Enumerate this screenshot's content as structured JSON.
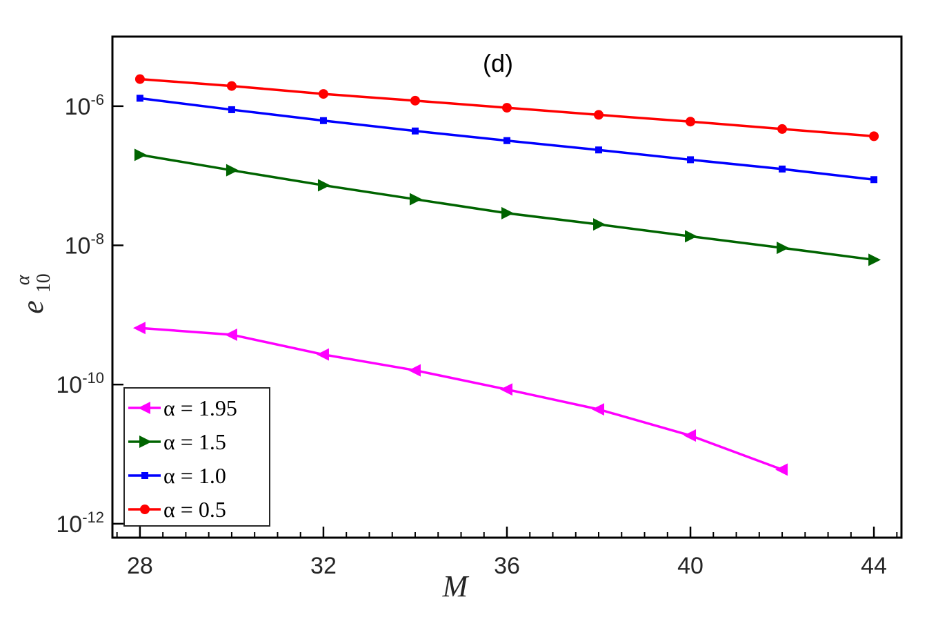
{
  "chart_data": {
    "type": "line",
    "panel_label": "(d)",
    "xlabel": "M",
    "ylabel_base": "e",
    "ylabel_sup": "α",
    "ylabel_sub": "10",
    "yscale": "log",
    "xlim": [
      27.4,
      44.6
    ],
    "ylim_exp": [
      -12.2,
      -5.0
    ],
    "xticks": [
      {
        "value": 28,
        "label": "28"
      },
      {
        "value": 32,
        "label": "32"
      },
      {
        "value": 36,
        "label": "36"
      },
      {
        "value": 40,
        "label": "40"
      },
      {
        "value": 44,
        "label": "44"
      }
    ],
    "yticks": [
      {
        "exp": -6,
        "base": "10",
        "sup": "-6"
      },
      {
        "exp": -8,
        "base": "10",
        "sup": "-8"
      },
      {
        "exp": -10,
        "base": "10",
        "sup": "-10"
      },
      {
        "exp": -12,
        "base": "10",
        "sup": "-12"
      }
    ],
    "legend_position": "bottom-left",
    "series": [
      {
        "name": "α = 1.95",
        "color": "#ff00ff",
        "marker": "triangle-left",
        "x": [
          28,
          30,
          32,
          34,
          36,
          38,
          40,
          42
        ],
        "y": [
          6.5e-10,
          5.2e-10,
          2.7e-10,
          1.6e-10,
          8.5e-11,
          4.4e-11,
          1.85e-11,
          6e-12
        ]
      },
      {
        "name": "α = 1.5",
        "color": "#006400",
        "marker": "triangle-right",
        "x": [
          28,
          30,
          32,
          34,
          36,
          38,
          40,
          42,
          44
        ],
        "y": [
          2e-07,
          1.2e-07,
          7.3e-08,
          4.6e-08,
          2.9e-08,
          2e-08,
          1.35e-08,
          9.2e-09,
          6.2e-09
        ]
      },
      {
        "name": "α = 1.0",
        "color": "#0000ff",
        "marker": "square",
        "x": [
          28,
          30,
          32,
          34,
          36,
          38,
          40,
          42,
          44
        ],
        "y": [
          1.3e-06,
          8.9e-07,
          6.2e-07,
          4.4e-07,
          3.2e-07,
          2.35e-07,
          1.7e-07,
          1.25e-07,
          8.8e-08
        ]
      },
      {
        "name": "α = 0.5",
        "color": "#ff0000",
        "marker": "circle",
        "x": [
          28,
          30,
          32,
          34,
          36,
          38,
          40,
          42,
          44
        ],
        "y": [
          2.45e-06,
          1.95e-06,
          1.5e-06,
          1.2e-06,
          9.5e-07,
          7.5e-07,
          6e-07,
          4.7e-07,
          3.7e-07
        ]
      }
    ],
    "legend_order": [
      0,
      1,
      2,
      3
    ]
  }
}
